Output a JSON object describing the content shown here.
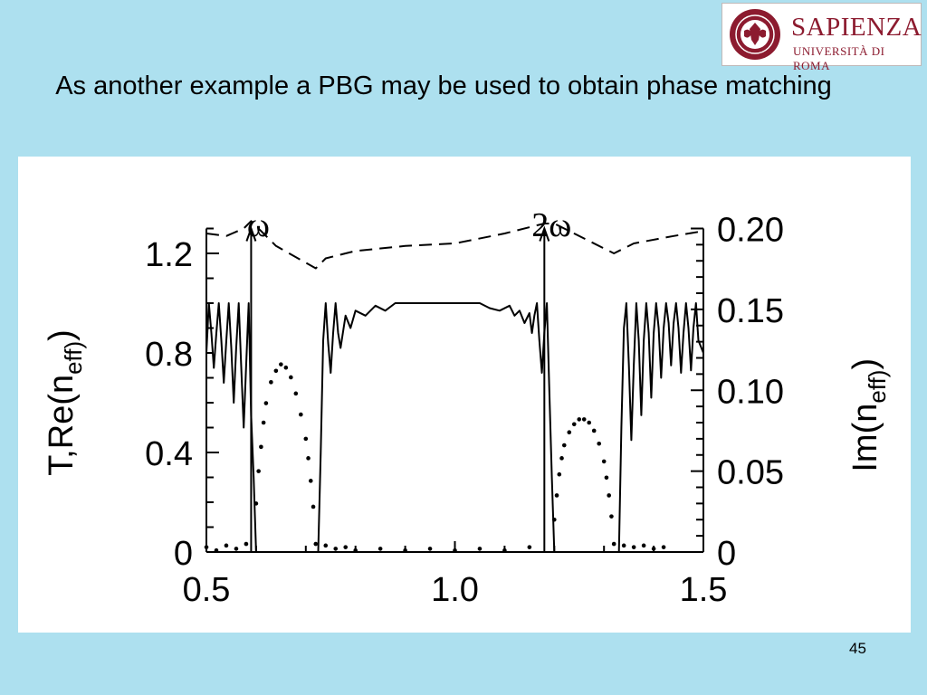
{
  "slide": {
    "title": "As another example a PBG may be used to obtain phase matching",
    "page_number": "45"
  },
  "logo": {
    "name": "SAPIENZA",
    "subtitle": "UNIVERSITÀ DI ROMA",
    "seal_text": "STVDIVM VRBIS",
    "primary_color": "#8c1b2f"
  },
  "colors": {
    "background": "#ade0ef",
    "panel": "#ffffff",
    "ink": "#000000"
  },
  "chart_data": {
    "type": "line",
    "title": "",
    "xlabel": "",
    "ylabel_left": "T,Re(n_eff)",
    "ylabel_right": "Im(n_eff)",
    "xlim": [
      0.5,
      1.5
    ],
    "ylim_left": [
      0,
      1.25
    ],
    "ylim_right": [
      0,
      0.2
    ],
    "x_ticks": [
      "0.5",
      "1.0",
      "1.5"
    ],
    "y_ticks_left": [
      "0",
      "0.4",
      "0.8",
      "1.2"
    ],
    "y_ticks_right": [
      "0",
      "0.05",
      "0.10",
      "0.15",
      "0.20"
    ],
    "grid": false,
    "annotations": [
      {
        "text": "ω",
        "x": 0.59,
        "y": 1.32
      },
      {
        "text": "2ω",
        "x": 1.18,
        "y": 1.32
      }
    ],
    "series": [
      {
        "style": "solid",
        "axis": "left",
        "x": [
          0.5,
          0.505,
          0.51,
          0.515,
          0.52,
          0.525,
          0.53,
          0.535,
          0.54,
          0.545,
          0.55,
          0.555,
          0.56,
          0.565,
          0.57,
          0.575,
          0.58,
          0.585,
          0.59,
          0.595,
          0.6,
          0.61,
          0.65,
          0.7,
          0.725,
          0.73,
          0.735,
          0.74,
          0.745,
          0.75,
          0.755,
          0.76,
          0.765,
          0.77,
          0.78,
          0.79,
          0.8,
          0.82,
          0.84,
          0.86,
          0.88,
          0.9,
          1.0,
          1.05,
          1.07,
          1.09,
          1.11,
          1.12,
          1.13,
          1.14,
          1.15,
          1.155,
          1.16,
          1.165,
          1.17,
          1.175,
          1.18,
          1.185,
          1.19,
          1.195,
          1.2,
          1.21,
          1.26,
          1.32,
          1.33,
          1.335,
          1.34,
          1.345,
          1.35,
          1.355,
          1.36,
          1.365,
          1.37,
          1.375,
          1.38,
          1.385,
          1.39,
          1.395,
          1.4,
          1.405,
          1.41,
          1.415,
          1.42,
          1.425,
          1.43,
          1.435,
          1.44,
          1.445,
          1.45,
          1.455,
          1.46,
          1.465,
          1.47,
          1.475,
          1.48,
          1.485,
          1.49,
          1.5
        ],
        "y": [
          0.8,
          1.0,
          0.88,
          0.74,
          0.88,
          1.0,
          0.85,
          0.68,
          0.85,
          1.0,
          0.82,
          0.6,
          0.82,
          1.0,
          0.75,
          0.5,
          0.75,
          1.0,
          0.55,
          0.3,
          0.0,
          0.0,
          0.0,
          0.0,
          0.0,
          0.4,
          0.85,
          1.0,
          0.84,
          0.72,
          0.88,
          1.0,
          0.88,
          0.82,
          0.95,
          0.9,
          0.97,
          0.95,
          0.99,
          0.97,
          1.0,
          1.0,
          1.0,
          1.0,
          0.98,
          0.97,
          0.99,
          0.95,
          0.97,
          0.92,
          0.96,
          0.88,
          0.95,
          1.0,
          0.85,
          0.72,
          0.88,
          1.0,
          0.65,
          0.3,
          0.0,
          0.0,
          0.0,
          0.0,
          0.0,
          0.5,
          0.9,
          1.0,
          0.75,
          0.45,
          0.75,
          1.0,
          0.85,
          0.55,
          0.85,
          1.0,
          0.88,
          0.62,
          0.88,
          1.0,
          0.9,
          0.7,
          0.9,
          1.0,
          0.92,
          0.75,
          0.92,
          1.0,
          0.9,
          0.72,
          0.88,
          1.0,
          0.9,
          0.73,
          0.9,
          1.0,
          0.85,
          0.8
        ]
      },
      {
        "style": "dashed",
        "axis": "left",
        "x": [
          0.5,
          0.54,
          0.575,
          0.59,
          0.64,
          0.72,
          0.74,
          0.8,
          0.9,
          1.0,
          1.1,
          1.18,
          1.2,
          1.26,
          1.32,
          1.36,
          1.44,
          1.5
        ],
        "y": [
          1.28,
          1.27,
          1.3,
          1.33,
          1.23,
          1.14,
          1.18,
          1.21,
          1.23,
          1.24,
          1.28,
          1.32,
          1.32,
          1.26,
          1.2,
          1.24,
          1.27,
          1.29
        ]
      },
      {
        "style": "dotted",
        "axis": "right",
        "x": [
          0.5,
          0.52,
          0.54,
          0.56,
          0.58,
          0.6,
          0.605,
          0.61,
          0.615,
          0.62,
          0.63,
          0.64,
          0.65,
          0.66,
          0.67,
          0.68,
          0.69,
          0.7,
          0.705,
          0.71,
          0.715,
          0.72,
          0.74,
          0.76,
          0.78,
          0.8,
          0.85,
          0.9,
          0.95,
          1.0,
          1.05,
          1.1,
          1.15,
          1.2,
          1.205,
          1.21,
          1.215,
          1.22,
          1.23,
          1.24,
          1.25,
          1.26,
          1.27,
          1.28,
          1.29,
          1.3,
          1.305,
          1.31,
          1.315,
          1.32,
          1.34,
          1.36,
          1.38,
          1.4,
          1.42
        ],
        "y": [
          0.003,
          0.001,
          0.004,
          0.002,
          0.005,
          0.03,
          0.05,
          0.065,
          0.08,
          0.092,
          0.105,
          0.112,
          0.116,
          0.114,
          0.108,
          0.098,
          0.085,
          0.07,
          0.058,
          0.044,
          0.028,
          0.005,
          0.004,
          0.002,
          0.003,
          0.001,
          0.002,
          0.001,
          0.002,
          0.001,
          0.002,
          0.001,
          0.003,
          0.02,
          0.035,
          0.048,
          0.058,
          0.066,
          0.074,
          0.079,
          0.082,
          0.082,
          0.08,
          0.075,
          0.067,
          0.056,
          0.046,
          0.035,
          0.022,
          0.005,
          0.004,
          0.003,
          0.004,
          0.002,
          0.003
        ]
      }
    ]
  }
}
